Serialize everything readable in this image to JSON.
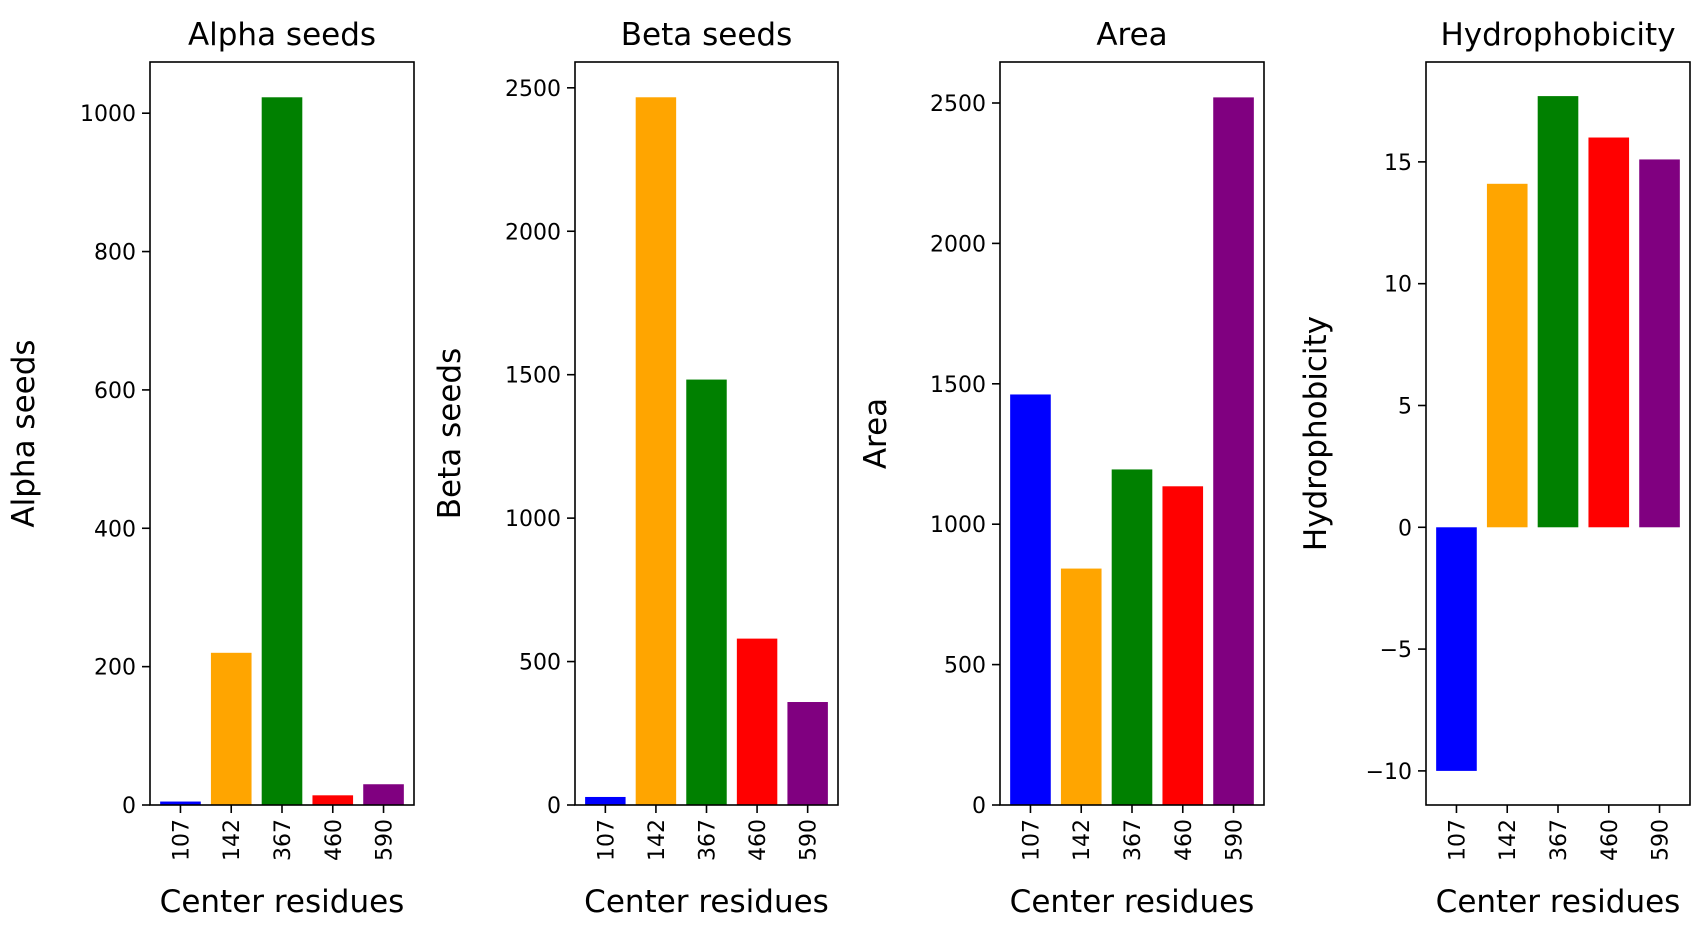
{
  "chart_data": [
    {
      "type": "bar",
      "title": "Alpha seeds",
      "xlabel": "Center residues",
      "ylabel": "Alpha seeds",
      "categories": [
        "107",
        "142",
        "367",
        "460",
        "590"
      ],
      "values": [
        5,
        220,
        1023,
        14,
        30
      ],
      "colors": [
        "#0000ff",
        "#ffa500",
        "#008000",
        "#ff0000",
        "#800080"
      ],
      "ylim": [
        0,
        1074
      ],
      "yticks": [
        0,
        200,
        400,
        600,
        800,
        1000
      ],
      "ytick_labels": [
        "0",
        "200",
        "400",
        "600",
        "800",
        "1000"
      ]
    },
    {
      "type": "bar",
      "title": "Beta seeds",
      "xlabel": "Center residues",
      "ylabel": "Beta seeds",
      "categories": [
        "107",
        "142",
        "367",
        "460",
        "590"
      ],
      "values": [
        28,
        2467,
        1483,
        580,
        359
      ],
      "colors": [
        "#0000ff",
        "#ffa500",
        "#008000",
        "#ff0000",
        "#800080"
      ],
      "ylim": [
        0,
        2590
      ],
      "yticks": [
        0,
        500,
        1000,
        1500,
        2000,
        2500
      ],
      "ytick_labels": [
        "0",
        "500",
        "1000",
        "1500",
        "2000",
        "2500"
      ]
    },
    {
      "type": "bar",
      "title": "Area",
      "xlabel": "Center residues",
      "ylabel": "Area",
      "categories": [
        "107",
        "142",
        "367",
        "460",
        "590"
      ],
      "values": [
        1462,
        842,
        1195,
        1135,
        2520
      ],
      "colors": [
        "#0000ff",
        "#ffa500",
        "#008000",
        "#ff0000",
        "#800080"
      ],
      "ylim": [
        0,
        2646
      ],
      "yticks": [
        0,
        500,
        1000,
        1500,
        2000,
        2500
      ],
      "ytick_labels": [
        "0",
        "500",
        "1000",
        "1500",
        "2000",
        "2500"
      ]
    },
    {
      "type": "bar",
      "title": "Hydrophobicity",
      "xlabel": "Center residues",
      "ylabel": "Hydrophobicity",
      "categories": [
        "107",
        "142",
        "367",
        "460",
        "590"
      ],
      "values": [
        -10,
        14.1,
        17.7,
        16.0,
        15.1
      ],
      "colors": [
        "#0000ff",
        "#ffa500",
        "#008000",
        "#ff0000",
        "#800080"
      ],
      "ylim": [
        -11.4,
        19.1
      ],
      "yticks": [
        -10,
        -5,
        0,
        5,
        10,
        15
      ],
      "ytick_labels": [
        "−10",
        "−5",
        "0",
        "5",
        "10",
        "15"
      ]
    }
  ]
}
